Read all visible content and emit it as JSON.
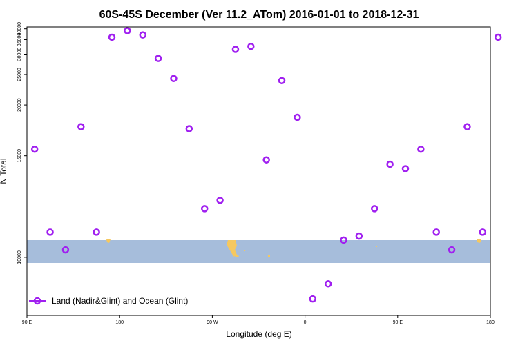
{
  "chart_data": {
    "type": "scatter",
    "title": "60S-45S December (Ver 11.2_ATom)   2016-01-01 to 2018-12-31",
    "xlabel": "Longitude (deg E)",
    "ylabel": "N Total",
    "x_axis": {
      "range_deg_east": [
        90,
        540
      ],
      "ticks": [
        {
          "value": 90,
          "label": "90 E"
        },
        {
          "value": 180,
          "label": "180"
        },
        {
          "value": 270,
          "label": "90 W"
        },
        {
          "value": 360,
          "label": "0"
        },
        {
          "value": 450,
          "label": "90 E"
        },
        {
          "value": 540,
          "label": "180"
        }
      ]
    },
    "y_axis": {
      "range": [
        8400,
        41000
      ],
      "scale": "reciprocal",
      "ticks": [
        10000,
        15000,
        20000,
        25000,
        30000,
        35000,
        40000
      ]
    },
    "grid": false,
    "legend": {
      "placement": "bottom-left",
      "entries": [
        "Land (Nadir&Glint) and Ocean (Glint)"
      ]
    },
    "series": [
      {
        "name": "Land (Nadir&Glint) and Ocean (Glint)",
        "color": "#a020f0",
        "marker": "open-circle",
        "points": [
          [
            97.5,
            15500
          ],
          [
            112.5,
            10900
          ],
          [
            127.5,
            10250
          ],
          [
            142.5,
            17500
          ],
          [
            157.5,
            10900
          ],
          [
            172.5,
            36000
          ],
          [
            187.5,
            39000
          ],
          [
            202.5,
            37000
          ],
          [
            217.5,
            28800
          ],
          [
            232.5,
            24200
          ],
          [
            247.5,
            17300
          ],
          [
            262.5,
            11900
          ],
          [
            277.5,
            12300
          ],
          [
            292.5,
            31500
          ],
          [
            307.5,
            32500
          ],
          [
            322.5,
            14700
          ],
          [
            337.5,
            23800
          ],
          [
            352.5,
            18500
          ],
          [
            367.5,
            8800
          ],
          [
            382.5,
            9200
          ],
          [
            397.5,
            10600
          ],
          [
            412.5,
            10750
          ],
          [
            427.5,
            11900
          ],
          [
            442.5,
            14400
          ],
          [
            457.5,
            14100
          ],
          [
            472.5,
            15500
          ],
          [
            487.5,
            10900
          ],
          [
            502.5,
            10250
          ],
          [
            517.5,
            17500
          ],
          [
            532.5,
            10900
          ],
          [
            547.5,
            36000
          ]
        ]
      }
    ],
    "map_band": {
      "color": "#a6bddb",
      "land_color": "#f5c860"
    }
  }
}
